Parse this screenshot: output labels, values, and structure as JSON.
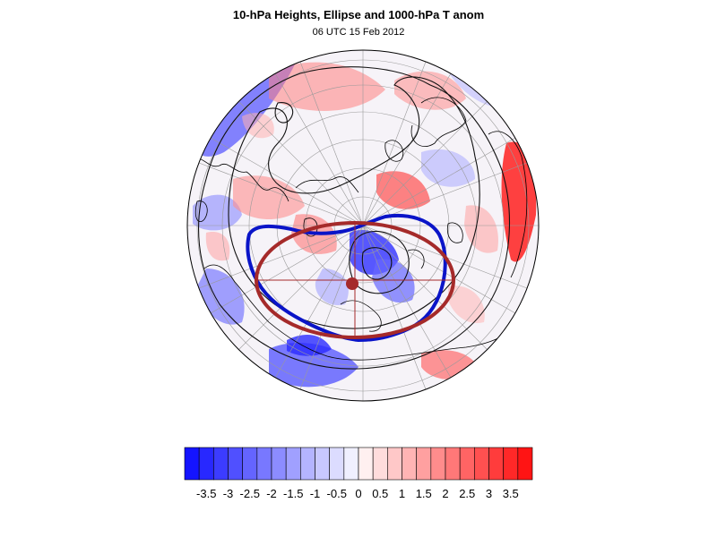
{
  "figure": {
    "title": "10-hPa Heights, Ellipse and 1000-hPa T anom",
    "subtitle": "06 UTC 15 Feb 2012"
  },
  "colors": {
    "ellipse": "#a52a2a",
    "vortex_contour": "#0a14c8",
    "height_contours": "#111111",
    "coastlines": "#000000",
    "graticule": "#9a9a9a"
  },
  "map": {
    "projection": "orthographic",
    "center": "North Pole",
    "graticule": true
  },
  "colorbar": {
    "tick_labels": [
      "-3.5",
      "-3",
      "-2.5",
      "-2",
      "-1.5",
      "-1",
      "-0.5",
      "0",
      "0.5",
      "1",
      "1.5",
      "2",
      "2.5",
      "3",
      "3.5"
    ],
    "colors": [
      "#1414ff",
      "#2828ff",
      "#3c3cff",
      "#5050ff",
      "#6464ff",
      "#7878ff",
      "#8c8cff",
      "#a0a0ff",
      "#b4b4ff",
      "#c8c8ff",
      "#dcdcff",
      "#f0f0ff",
      "#fff0f0",
      "#ffdcdc",
      "#ffc8c8",
      "#ffb4b4",
      "#ffa0a0",
      "#ff8c8c",
      "#ff7878",
      "#ff6464",
      "#ff5050",
      "#ff3c3c",
      "#ff2828",
      "#ff1414"
    ]
  }
}
